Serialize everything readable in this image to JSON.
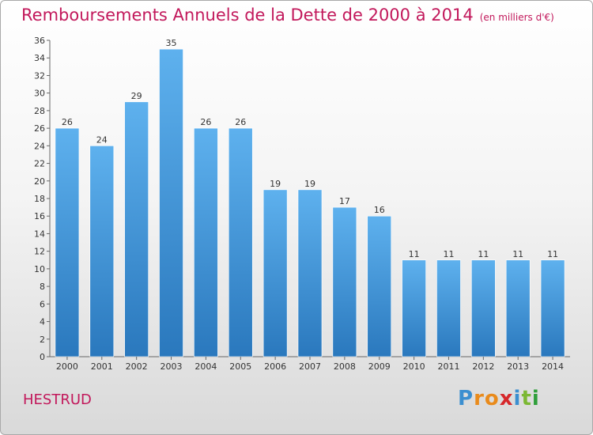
{
  "header": {
    "title": "Remboursements Annuels de la Dette de 2000 à 2014",
    "subtitle": "(en milliers d'€)"
  },
  "footer": {
    "commune": "HESTRUD",
    "logo_text": "Proxiti"
  },
  "colors": {
    "title": "#c2185b",
    "bar_top": "#5eb1ee",
    "bar_bottom": "#2a78bd"
  },
  "chart_data": {
    "type": "bar",
    "categories": [
      "2000",
      "2001",
      "2002",
      "2003",
      "2004",
      "2005",
      "2006",
      "2007",
      "2008",
      "2009",
      "2010",
      "2011",
      "2012",
      "2013",
      "2014"
    ],
    "values": [
      26,
      24,
      29,
      35,
      26,
      26,
      19,
      19,
      17,
      16,
      11,
      11,
      11,
      11,
      11
    ],
    "data_labels": [
      "26",
      "24",
      "29",
      "35",
      "26",
      "26",
      "19",
      "19",
      "17",
      "16",
      "11",
      "11",
      "11",
      "11",
      "11"
    ],
    "ylim": [
      0,
      36
    ],
    "yticks": [
      0,
      2,
      4,
      6,
      8,
      10,
      12,
      14,
      16,
      18,
      20,
      22,
      24,
      26,
      28,
      30,
      32,
      34,
      36
    ],
    "grid": false,
    "legend": "none"
  }
}
